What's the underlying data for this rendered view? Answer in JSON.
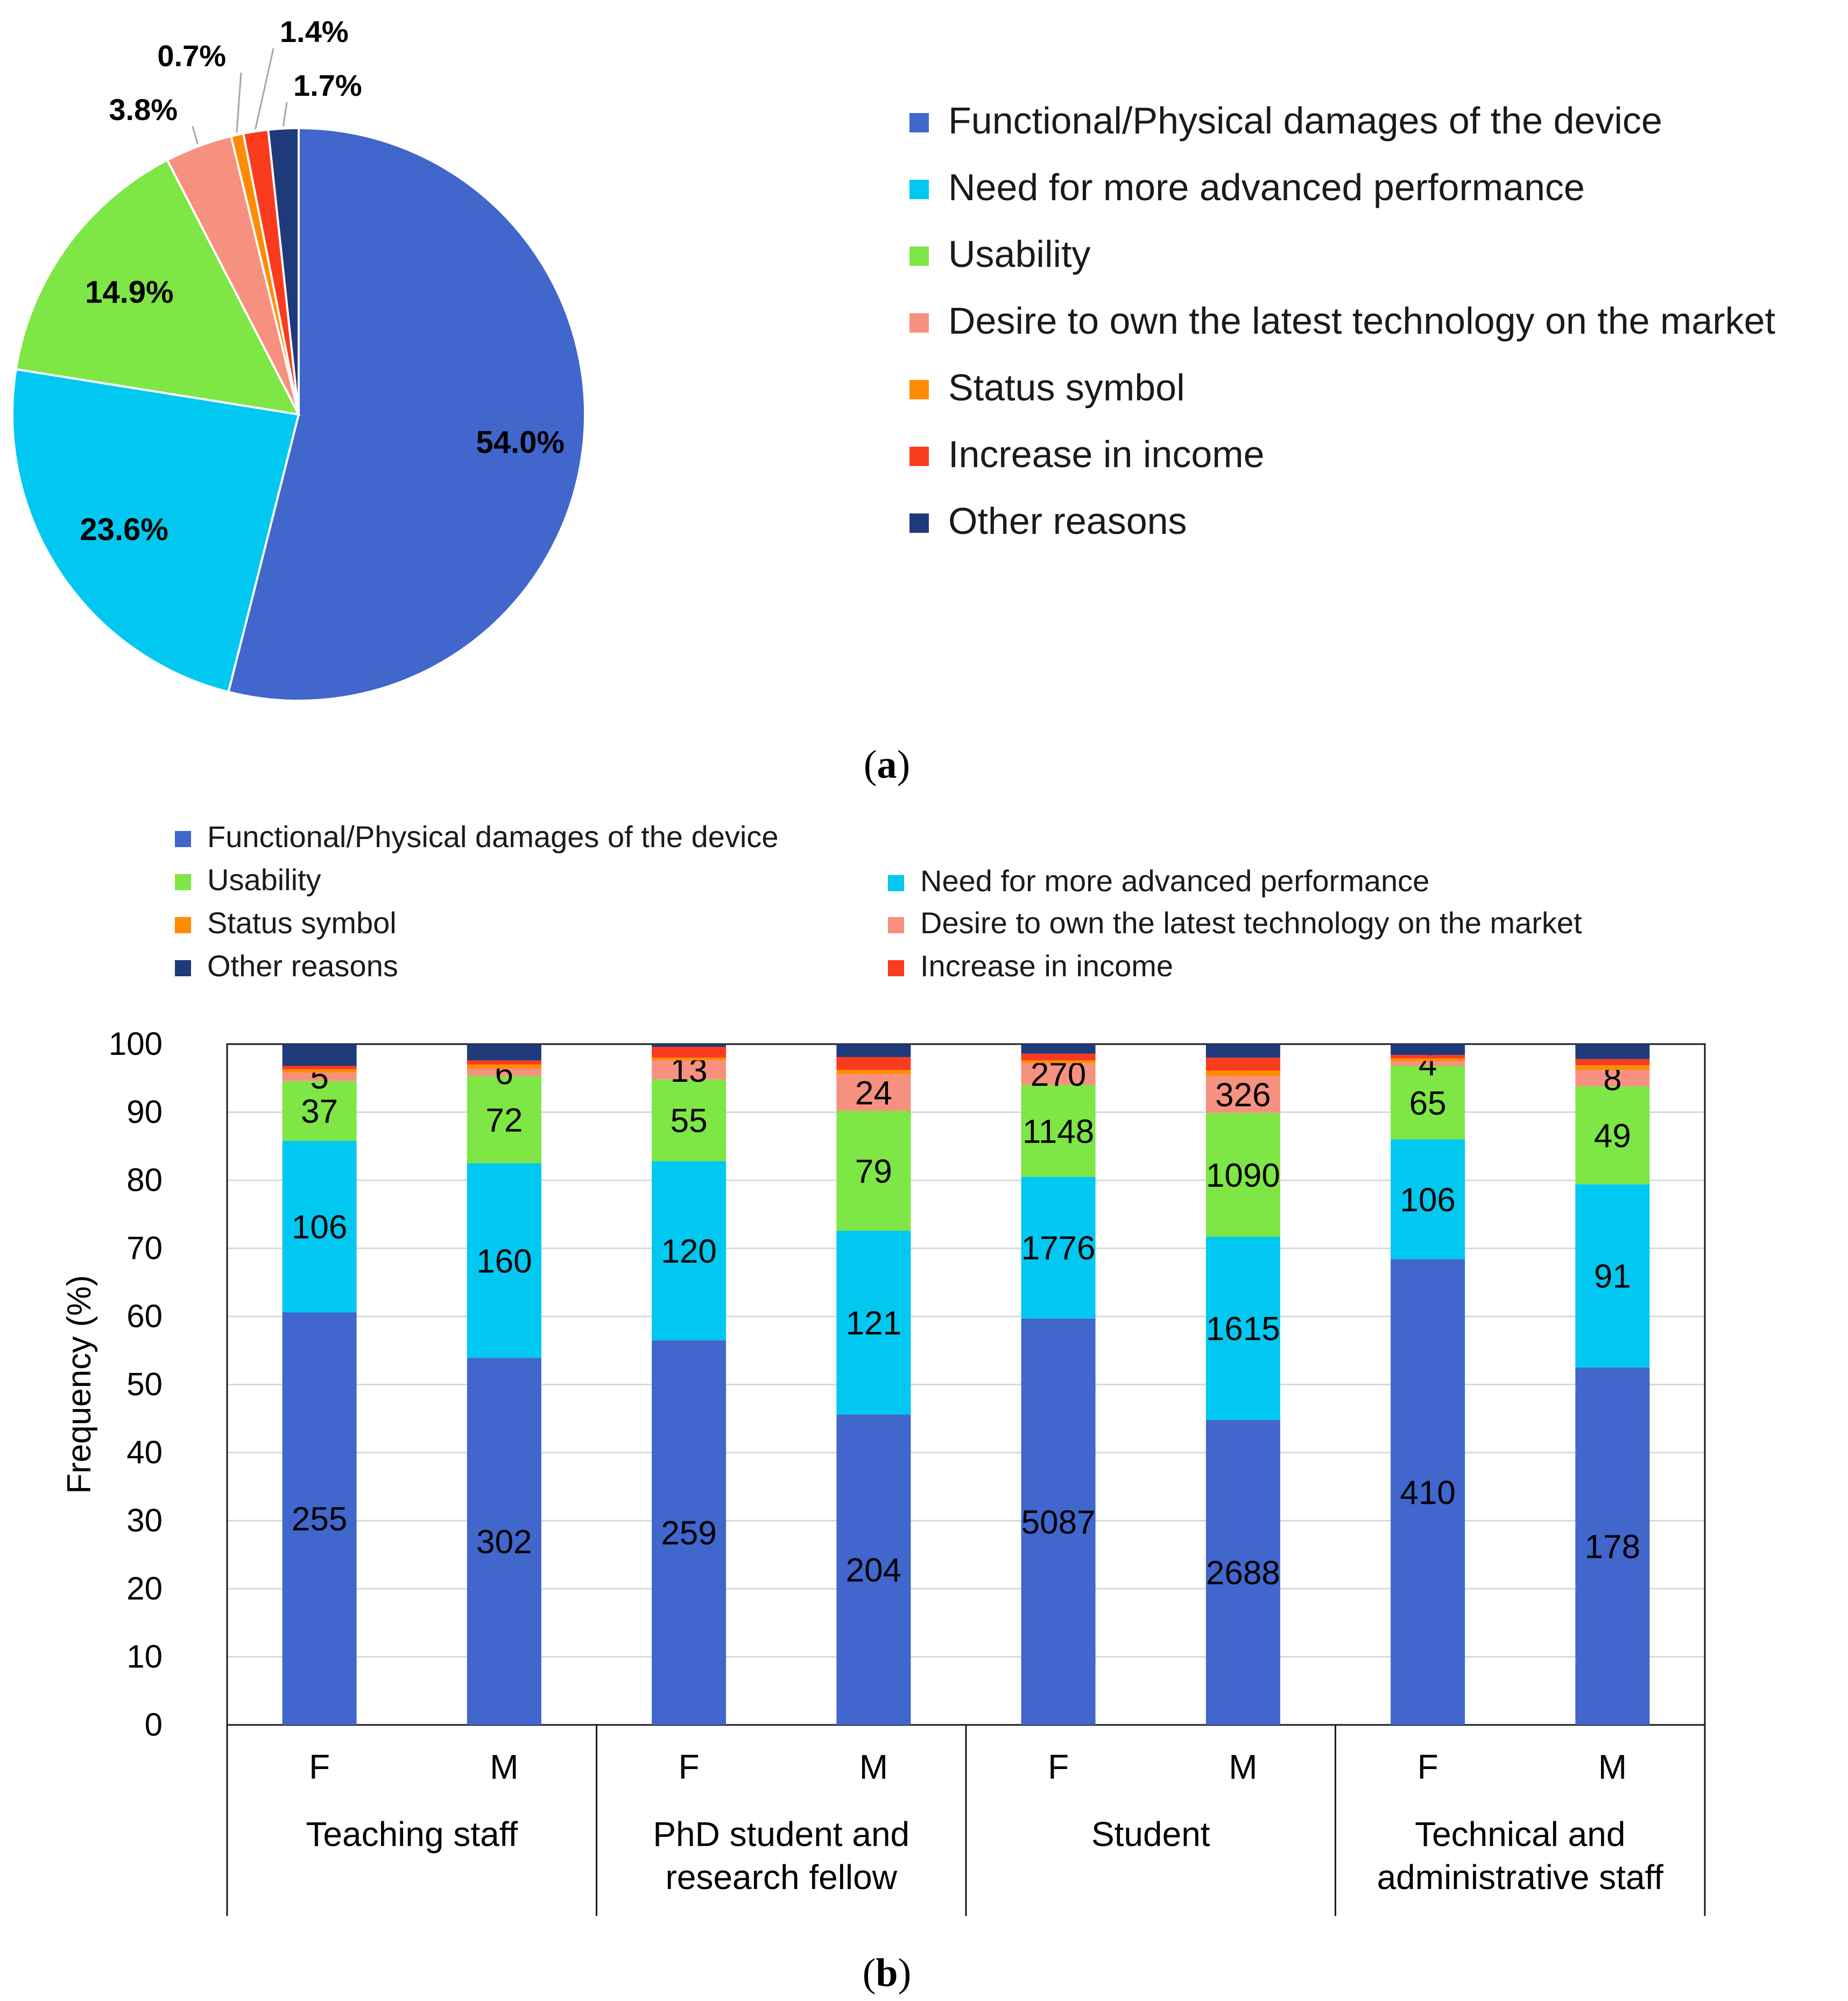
{
  "chart_data": [
    {
      "type": "pie",
      "panel_label": "a",
      "categories": [
        "Functional/Physical damages of the device",
        "Need for more advanced performance",
        "Usability",
        "Desire to own the latest technology on the market",
        "Status symbol",
        "Increase in income",
        "Other reasons"
      ],
      "values": [
        54.0,
        23.6,
        14.9,
        3.8,
        0.7,
        1.4,
        1.7
      ],
      "labels": [
        "54.0%",
        "23.6%",
        "14.9%",
        "3.8%",
        "0.7%",
        "1.4%",
        "1.7%"
      ],
      "colors": [
        "#4166cc",
        "#00c8f0",
        "#7ee645",
        "#f7917f",
        "#ff8c00",
        "#fb3b1e",
        "#1f3a7a"
      ],
      "legend_position": "right"
    },
    {
      "type": "bar",
      "stacked": true,
      "panel_label": "b",
      "ylabel": "Frequency (%)",
      "ylim": [
        0,
        100
      ],
      "yticks": [
        0,
        10,
        20,
        30,
        40,
        50,
        60,
        70,
        80,
        90,
        100
      ],
      "gender_labels": [
        "F",
        "M",
        "F",
        "M",
        "F",
        "M",
        "F",
        "M"
      ],
      "groups": [
        {
          "name": "Teaching staff",
          "lines": [
            "Teaching staff"
          ]
        },
        {
          "name": "PhD student and research fellow",
          "lines": [
            "PhD student and",
            "research fellow"
          ]
        },
        {
          "name": "Student",
          "lines": [
            "Student"
          ]
        },
        {
          "name": "Technical and administrative staff",
          "lines": [
            "Technical and",
            "administrative staff"
          ]
        }
      ],
      "legend": [
        {
          "name": "Functional/Physical damages of the device",
          "color": "#4166cc"
        },
        {
          "name": "Usability",
          "color": "#7ee645"
        },
        {
          "name": "Need for more advanced performance",
          "color": "#00c8f0"
        },
        {
          "name": "Status symbol",
          "color": "#ff8c00"
        },
        {
          "name": "Desire to own the latest technology on the market",
          "color": "#f7917f"
        },
        {
          "name": "Other reasons",
          "color": "#1f3a7a"
        },
        {
          "name": "Increase in income",
          "color": "#fb3b1e"
        }
      ],
      "series": [
        {
          "name": "Functional/Physical damages of the device",
          "color": "#4166cc",
          "values": [
            60.6,
            53.9,
            56.5,
            45.6,
            59.7,
            44.8,
            68.4,
            52.5
          ],
          "labels": [
            "255",
            "302",
            "259",
            "204",
            "5087",
            "2688",
            "410",
            "178"
          ]
        },
        {
          "name": "Need for more advanced performance",
          "color": "#00c8f0",
          "values": [
            25.2,
            28.6,
            26.3,
            27.0,
            20.8,
            26.9,
            17.6,
            26.9
          ],
          "labels": [
            "106",
            "160",
            "120",
            "121",
            "1776",
            "1615",
            "106",
            "91"
          ]
        },
        {
          "name": "Usability",
          "color": "#7ee645",
          "values": [
            8.8,
            12.8,
            12.0,
            17.6,
            13.5,
            18.2,
            10.8,
            14.4
          ],
          "labels": [
            "37",
            "72",
            "55",
            "79",
            "1148",
            "1090",
            "65",
            "49"
          ]
        },
        {
          "name": "Desire to own the latest technology on the market",
          "color": "#f7917f",
          "values": [
            1.2,
            1.1,
            2.8,
            5.4,
            3.2,
            5.4,
            0.7,
            2.4
          ],
          "labels": [
            "5",
            "6",
            "13",
            "24",
            "270",
            "326",
            "4",
            "8"
          ]
        },
        {
          "name": "Status symbol",
          "color": "#ff8c00",
          "values": [
            0.5,
            0.6,
            0.4,
            0.6,
            0.4,
            0.8,
            0.4,
            0.7
          ],
          "labels": [
            "",
            "",
            "",
            "",
            "",
            "",
            "",
            ""
          ]
        },
        {
          "name": "Increase in income",
          "color": "#fb3b1e",
          "values": [
            0.5,
            0.6,
            1.6,
            1.9,
            1.0,
            1.9,
            0.5,
            0.9
          ],
          "labels": [
            "",
            "",
            "",
            "",
            "",
            "",
            "",
            ""
          ]
        },
        {
          "name": "Other reasons",
          "color": "#1f3a7a",
          "values": [
            3.2,
            2.4,
            0.4,
            1.9,
            1.4,
            2.0,
            1.6,
            2.2
          ],
          "labels": [
            "",
            "",
            "",
            "",
            "",
            "",
            "",
            ""
          ]
        }
      ]
    }
  ]
}
